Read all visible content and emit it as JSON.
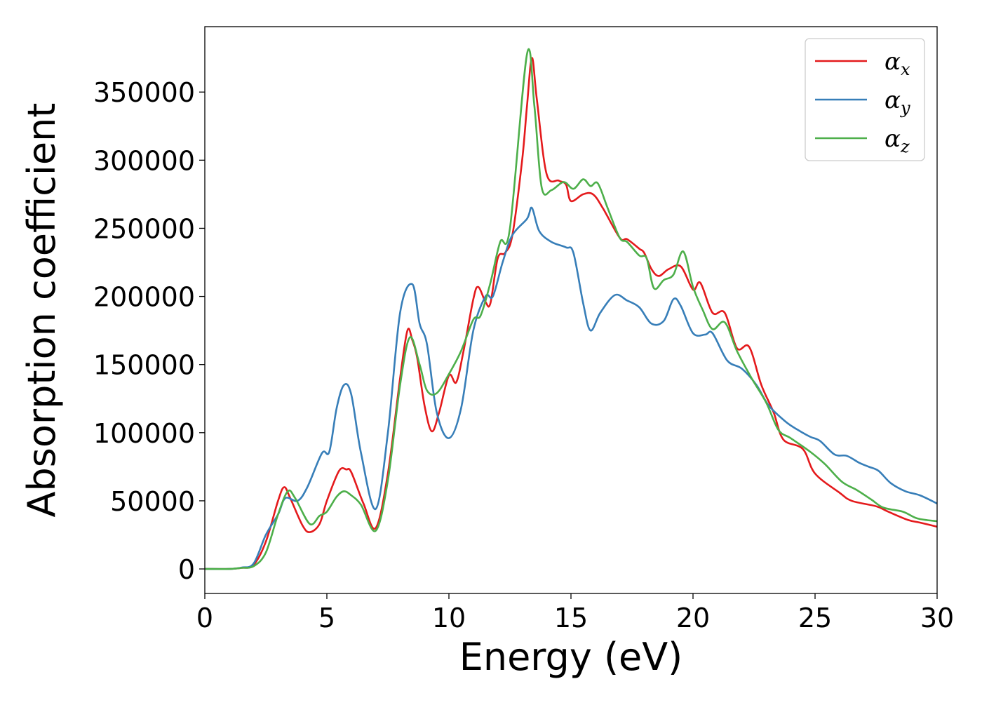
{
  "chart_data": {
    "type": "line",
    "xlabel": "Energy (eV)",
    "ylabel": "Absorption coefficient",
    "xlim": [
      0,
      30
    ],
    "ylim": [
      -18000,
      398000
    ],
    "xticks": [
      "0",
      "5",
      "10",
      "15",
      "20",
      "25",
      "30"
    ],
    "yticks": [
      "0",
      "50000",
      "100000",
      "150000",
      "200000",
      "250000",
      "300000",
      "350000"
    ],
    "grid": false,
    "legend_position": "top-right",
    "series": [
      {
        "name": "αx",
        "base": "α",
        "sub": "x",
        "color": "#e41a1c",
        "points": [
          [
            0,
            0
          ],
          [
            1,
            0
          ],
          [
            1.5,
            800
          ],
          [
            2,
            3000
          ],
          [
            2.5,
            20000
          ],
          [
            3,
            50000
          ],
          [
            3.25,
            60000
          ],
          [
            3.5,
            52000
          ],
          [
            4,
            32000
          ],
          [
            4.3,
            27000
          ],
          [
            4.7,
            33000
          ],
          [
            5,
            50000
          ],
          [
            5.5,
            72000
          ],
          [
            5.8,
            73000
          ],
          [
            6,
            71000
          ],
          [
            6.5,
            48000
          ],
          [
            7,
            30000
          ],
          [
            7.5,
            70000
          ],
          [
            8,
            140000
          ],
          [
            8.3,
            175000
          ],
          [
            8.5,
            168000
          ],
          [
            8.7,
            155000
          ],
          [
            9,
            120000
          ],
          [
            9.3,
            101000
          ],
          [
            9.6,
            115000
          ],
          [
            10,
            142000
          ],
          [
            10.3,
            137000
          ],
          [
            10.6,
            160000
          ],
          [
            11,
            198000
          ],
          [
            11.2,
            207000
          ],
          [
            11.5,
            196000
          ],
          [
            11.7,
            195000
          ],
          [
            12,
            228000
          ],
          [
            12.3,
            232000
          ],
          [
            12.6,
            245000
          ],
          [
            13,
            300000
          ],
          [
            13.2,
            340000
          ],
          [
            13.4,
            375000
          ],
          [
            13.6,
            345000
          ],
          [
            14,
            290000
          ],
          [
            14.5,
            285000
          ],
          [
            14.8,
            282000
          ],
          [
            15,
            270000
          ],
          [
            15.5,
            275000
          ],
          [
            15.9,
            275000
          ],
          [
            16.3,
            265000
          ],
          [
            17,
            243000
          ],
          [
            17.3,
            242000
          ],
          [
            17.8,
            235000
          ],
          [
            18,
            232000
          ],
          [
            18.3,
            220000
          ],
          [
            18.6,
            215000
          ],
          [
            19,
            220000
          ],
          [
            19.5,
            222000
          ],
          [
            20,
            205000
          ],
          [
            20.3,
            210000
          ],
          [
            20.8,
            188000
          ],
          [
            21.3,
            188000
          ],
          [
            21.8,
            162000
          ],
          [
            22.3,
            163000
          ],
          [
            22.8,
            135000
          ],
          [
            23.3,
            115000
          ],
          [
            23.7,
            95000
          ],
          [
            24.5,
            88000
          ],
          [
            25,
            70000
          ],
          [
            26,
            56000
          ],
          [
            26.5,
            50000
          ],
          [
            27.5,
            46000
          ],
          [
            28,
            42000
          ],
          [
            28.8,
            36000
          ],
          [
            29.3,
            34000
          ],
          [
            30,
            31000
          ]
        ]
      },
      {
        "name": "αy",
        "base": "α",
        "sub": "y",
        "color": "#377eb8",
        "points": [
          [
            0,
            0
          ],
          [
            1,
            0
          ],
          [
            1.5,
            1000
          ],
          [
            2,
            4000
          ],
          [
            2.5,
            25000
          ],
          [
            3,
            40000
          ],
          [
            3.3,
            52000
          ],
          [
            3.8,
            50000
          ],
          [
            4.2,
            60000
          ],
          [
            4.8,
            85000
          ],
          [
            5.1,
            86000
          ],
          [
            5.4,
            118000
          ],
          [
            5.7,
            135000
          ],
          [
            6,
            128000
          ],
          [
            6.4,
            85000
          ],
          [
            7,
            44000
          ],
          [
            7.5,
            100000
          ],
          [
            8,
            188000
          ],
          [
            8.5,
            209000
          ],
          [
            8.8,
            180000
          ],
          [
            9.1,
            165000
          ],
          [
            9.5,
            115000
          ],
          [
            10,
            96000
          ],
          [
            10.5,
            118000
          ],
          [
            11,
            175000
          ],
          [
            11.5,
            200000
          ],
          [
            11.8,
            200000
          ],
          [
            12.2,
            225000
          ],
          [
            12.6,
            245000
          ],
          [
            13.2,
            257000
          ],
          [
            13.4,
            265000
          ],
          [
            13.7,
            248000
          ],
          [
            14.2,
            240000
          ],
          [
            14.8,
            236000
          ],
          [
            15.1,
            232000
          ],
          [
            15.5,
            195000
          ],
          [
            15.8,
            175000
          ],
          [
            16.2,
            188000
          ],
          [
            16.8,
            201000
          ],
          [
            17.3,
            197000
          ],
          [
            17.8,
            192000
          ],
          [
            18.3,
            180000
          ],
          [
            18.8,
            182000
          ],
          [
            19.2,
            198000
          ],
          [
            19.5,
            193000
          ],
          [
            20,
            173000
          ],
          [
            20.5,
            172000
          ],
          [
            20.8,
            173000
          ],
          [
            21.4,
            153000
          ],
          [
            22,
            147000
          ],
          [
            22.6,
            135000
          ],
          [
            23.1,
            120000
          ],
          [
            23.8,
            108000
          ],
          [
            24.3,
            102000
          ],
          [
            24.8,
            97000
          ],
          [
            25.2,
            94000
          ],
          [
            25.8,
            84000
          ],
          [
            26.3,
            83000
          ],
          [
            26.8,
            78000
          ],
          [
            27.2,
            75000
          ],
          [
            27.6,
            72000
          ],
          [
            28.1,
            63000
          ],
          [
            28.7,
            57000
          ],
          [
            29.3,
            54000
          ],
          [
            30,
            48000
          ]
        ]
      },
      {
        "name": "αz",
        "base": "α",
        "sub": "z",
        "color": "#4daf4a",
        "points": [
          [
            0,
            0
          ],
          [
            1,
            0
          ],
          [
            1.5,
            800
          ],
          [
            2,
            2000
          ],
          [
            2.5,
            12000
          ],
          [
            3,
            40000
          ],
          [
            3.4,
            57000
          ],
          [
            3.7,
            52000
          ],
          [
            4.3,
            33000
          ],
          [
            4.7,
            39000
          ],
          [
            5,
            42000
          ],
          [
            5.4,
            53000
          ],
          [
            5.7,
            57000
          ],
          [
            6,
            54000
          ],
          [
            6.4,
            47000
          ],
          [
            7,
            28000
          ],
          [
            7.5,
            65000
          ],
          [
            8,
            135000
          ],
          [
            8.4,
            170000
          ],
          [
            8.8,
            150000
          ],
          [
            9.1,
            131000
          ],
          [
            9.5,
            129000
          ],
          [
            10,
            143000
          ],
          [
            10.5,
            160000
          ],
          [
            11,
            183000
          ],
          [
            11.3,
            186000
          ],
          [
            11.7,
            210000
          ],
          [
            12.1,
            240000
          ],
          [
            12.5,
            250000
          ],
          [
            13.2,
            378000
          ],
          [
            13.5,
            340000
          ],
          [
            13.8,
            280000
          ],
          [
            14.2,
            278000
          ],
          [
            14.7,
            284000
          ],
          [
            15.1,
            279000
          ],
          [
            15.5,
            286000
          ],
          [
            15.8,
            281000
          ],
          [
            16.1,
            283000
          ],
          [
            16.5,
            265000
          ],
          [
            17,
            243000
          ],
          [
            17.3,
            240000
          ],
          [
            17.8,
            230000
          ],
          [
            18.1,
            228000
          ],
          [
            18.4,
            206000
          ],
          [
            18.8,
            212000
          ],
          [
            19.2,
            216000
          ],
          [
            19.6,
            233000
          ],
          [
            20,
            207000
          ],
          [
            20.4,
            190000
          ],
          [
            20.8,
            176000
          ],
          [
            21.3,
            181000
          ],
          [
            21.8,
            160000
          ],
          [
            22.4,
            140000
          ],
          [
            23,
            122000
          ],
          [
            23.5,
            102000
          ],
          [
            24,
            96000
          ],
          [
            24.8,
            86000
          ],
          [
            25.4,
            77000
          ],
          [
            26.1,
            64000
          ],
          [
            26.7,
            58000
          ],
          [
            27.3,
            51000
          ],
          [
            27.8,
            45000
          ],
          [
            28.6,
            42000
          ],
          [
            29.2,
            37000
          ],
          [
            30,
            35000
          ]
        ]
      }
    ]
  }
}
